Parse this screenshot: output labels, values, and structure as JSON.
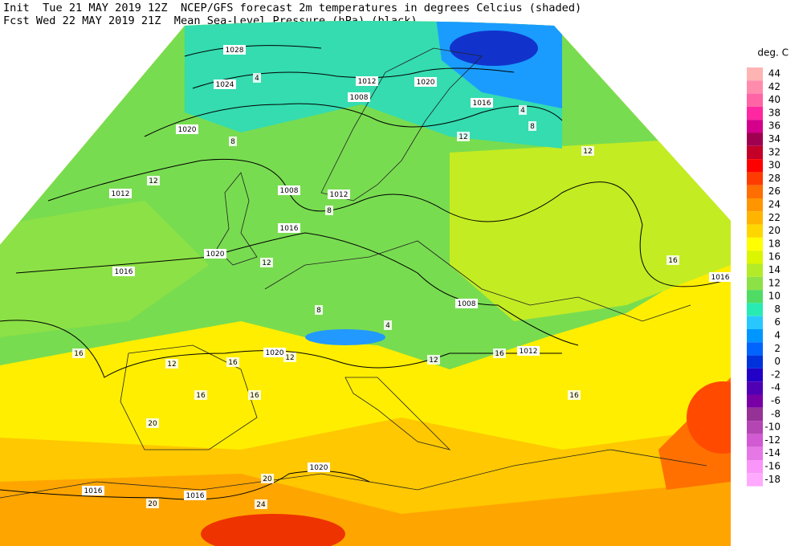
{
  "header": {
    "line1": "Init  Tue 21 MAY 2019 12Z  NCEP/GFS forecast 2m temperatures in degrees Celcius (shaded)",
    "line2": "Fcst Wed 22 MAY 2019 21Z  Mean Sea-Level Pressure (hPa) (black)."
  },
  "legend": {
    "title": "deg. C",
    "items": [
      {
        "label": "44",
        "color": "#ffb4b4"
      },
      {
        "label": "42",
        "color": "#ff8cac"
      },
      {
        "label": "40",
        "color": "#ff64a4"
      },
      {
        "label": "38",
        "color": "#ff28a0"
      },
      {
        "label": "36",
        "color": "#d4008c"
      },
      {
        "label": "34",
        "color": "#a00050"
      },
      {
        "label": "32",
        "color": "#c40028"
      },
      {
        "label": "30",
        "color": "#ff0000"
      },
      {
        "label": "28",
        "color": "#ff3c00"
      },
      {
        "label": "26",
        "color": "#ff6e00"
      },
      {
        "label": "24",
        "color": "#ff9600"
      },
      {
        "label": "22",
        "color": "#ffb400"
      },
      {
        "label": "20",
        "color": "#ffd700"
      },
      {
        "label": "18",
        "color": "#ffff00"
      },
      {
        "label": "16",
        "color": "#dcf500"
      },
      {
        "label": "14",
        "color": "#b4eb28"
      },
      {
        "label": "12",
        "color": "#8ce146"
      },
      {
        "label": "10",
        "color": "#50dc64"
      },
      {
        "label": "8",
        "color": "#28ebb4"
      },
      {
        "label": "6",
        "color": "#28c8ff"
      },
      {
        "label": "4",
        "color": "#0096ff"
      },
      {
        "label": "2",
        "color": "#0064ff"
      },
      {
        "label": "0",
        "color": "#0032dc"
      },
      {
        "label": "-2",
        "color": "#2300c8"
      },
      {
        "label": "-4",
        "color": "#5000b4"
      },
      {
        "label": "-6",
        "color": "#7800a5"
      },
      {
        "label": "-8",
        "color": "#963296"
      },
      {
        "label": "-10",
        "color": "#b446b4"
      },
      {
        "label": "-12",
        "color": "#d25ad2"
      },
      {
        "label": "-14",
        "color": "#e678e6"
      },
      {
        "label": "-16",
        "color": "#fa96fa"
      },
      {
        "label": "-18",
        "color": "#ffaaff"
      }
    ]
  },
  "map": {
    "isobar_labels": [
      "1028",
      "1024",
      "1020",
      "1012",
      "1020",
      "1016",
      "1008",
      "1008",
      "1012",
      "1012",
      "1016",
      "1020",
      "1016",
      "1008",
      "1012",
      "1020",
      "1016",
      "1016",
      "1020",
      "1016"
    ],
    "temperature_labels": [
      "4",
      "8",
      "12",
      "12",
      "12",
      "8",
      "4",
      "16",
      "12",
      "16",
      "16",
      "16",
      "20",
      "12",
      "12",
      "16",
      "16",
      "20",
      "24",
      "20",
      "16",
      "8",
      "12",
      "4",
      "8"
    ]
  }
}
